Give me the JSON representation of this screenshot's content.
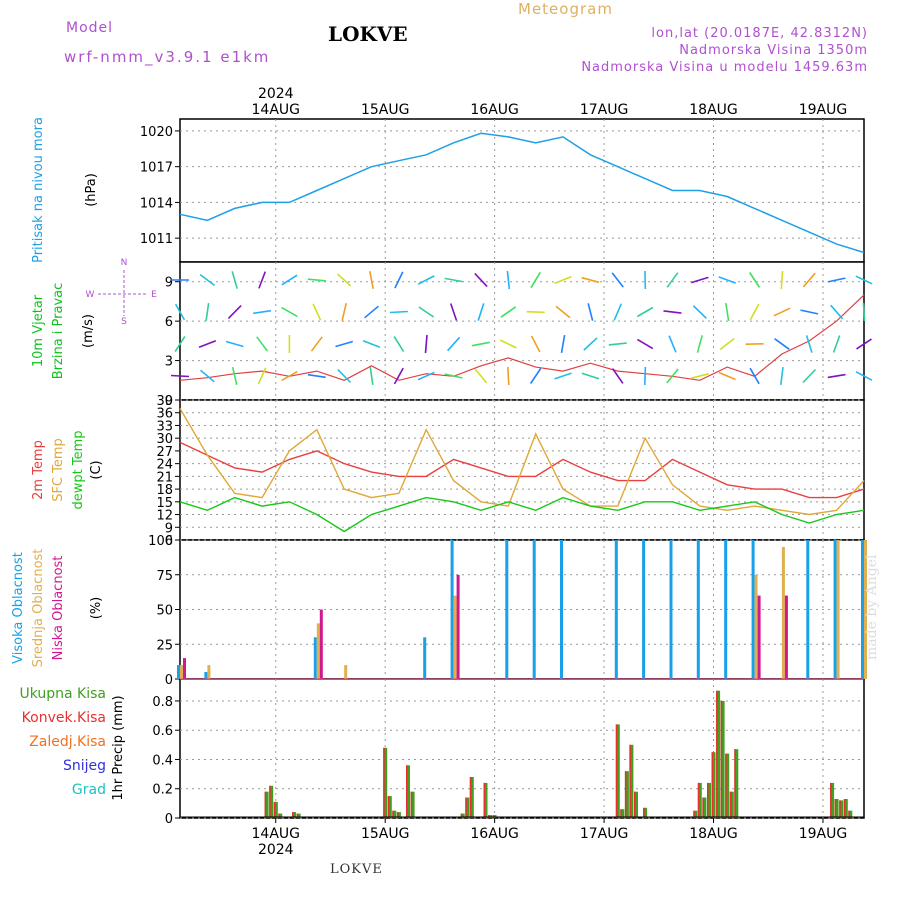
{
  "header": {
    "model_label": "Model",
    "model_name": "wrf-nmm_v3.9.1 e1km",
    "station": "LOKVE",
    "meteogram_label": "Meteogram",
    "lonlat": "lon,lat (20.0187E, 42.8312N)",
    "altitude": "Nadmorska Visina 1350m",
    "model_altitude": "Nadmorska Visina u modelu 1459.63m",
    "footer_station": "LOKVE",
    "watermark": "made by Angel"
  },
  "time_axis": {
    "year": "2024",
    "day_labels": [
      "14AUG",
      "15AUG",
      "16AUG",
      "17AUG",
      "18AUG",
      "19AUG"
    ],
    "start": "2024-08-13T15:00",
    "end": "2024-08-19T21:00",
    "day_ticks": [
      "2024-08-14T12:00",
      "2024-08-15T12:00",
      "2024-08-16T12:00",
      "2024-08-17T12:00",
      "2024-08-18T12:00",
      "2024-08-19T12:00"
    ]
  },
  "colors": {
    "pressure": "#1ea0e6",
    "wind_label": "#10c020",
    "temp2m": "#e84040",
    "sfctemp": "#e0a838",
    "dewpoint": "#18c818",
    "high_cloud": "#18a0e8",
    "mid_cloud": "#e0b050",
    "low_cloud": "#d01890",
    "total_precip": "#40a020",
    "conv_precip": "#e83030",
    "compass": "#b050d0"
  },
  "chart_data": [
    {
      "type": "line",
      "panel": "pressure",
      "ylabel_lines": [
        "Pritisak na nivou mora",
        "(hPa)"
      ],
      "ylim": [
        1009,
        1021
      ],
      "ticks": [
        1011,
        1014,
        1017,
        1020
      ],
      "grid": true,
      "series": [
        {
          "x_hours": [
            0,
            6,
            12,
            18,
            24,
            30,
            36,
            42,
            48,
            54,
            60,
            66,
            72,
            78,
            84,
            90,
            96,
            102,
            108,
            114,
            120,
            126,
            132,
            138,
            144,
            150
          ],
          "values": [
            1013,
            1012.5,
            1013.5,
            1014,
            1014,
            1015,
            1016,
            1017,
            1017.5,
            1018,
            1019,
            1019.8,
            1019.5,
            1019,
            1019.5,
            1018,
            1017,
            1016,
            1015,
            1015,
            1014.5,
            1013.5,
            1012.5,
            1011.5,
            1010.5,
            1009.8
          ]
        }
      ]
    },
    {
      "type": "line",
      "panel": "wind",
      "ylabel_lines": [
        "10m Vjetar",
        "Brzina i Pravac",
        "(m/s)"
      ],
      "compass": {
        "n": "N",
        "s": "S",
        "e": "E",
        "w": "W"
      },
      "ylim": [
        0,
        10.5
      ],
      "ticks": [
        0,
        3,
        6,
        9
      ],
      "grid": true,
      "series": [
        {
          "name": "speed",
          "x_hours": [
            0,
            6,
            12,
            18,
            24,
            30,
            36,
            42,
            48,
            54,
            60,
            66,
            72,
            78,
            84,
            90,
            96,
            102,
            108,
            114,
            120,
            126,
            132,
            138,
            144,
            150
          ],
          "values": [
            1.5,
            1.7,
            2,
            2.2,
            1.8,
            2.2,
            1.5,
            2.6,
            1.5,
            2,
            1.8,
            2.6,
            3.2,
            2.5,
            2.2,
            2.8,
            2.2,
            2,
            1.8,
            1.5,
            2.5,
            1.8,
            3.5,
            4.5,
            6,
            8
          ]
        }
      ]
    },
    {
      "type": "line",
      "panel": "temperature",
      "ylabel_lines": [
        "2m Temp",
        "SFC Temp",
        "dewpt Temp",
        "(C)"
      ],
      "ylim": [
        6,
        39
      ],
      "ticks": [
        6,
        9,
        12,
        15,
        18,
        21,
        24,
        27,
        30,
        33,
        36,
        39
      ],
      "grid": true,
      "series": [
        {
          "name": "2m Temp",
          "x_hours": [
            0,
            6,
            12,
            18,
            24,
            30,
            36,
            42,
            48,
            54,
            60,
            66,
            72,
            78,
            84,
            90,
            96,
            102,
            108,
            114,
            120,
            126,
            132,
            138,
            144,
            150
          ],
          "values": [
            29,
            26,
            23,
            22,
            25,
            27,
            24,
            22,
            21,
            21,
            25,
            23,
            21,
            21,
            25,
            22,
            20,
            20,
            25,
            22,
            19,
            18,
            18,
            16,
            16,
            18
          ]
        },
        {
          "name": "SFC Temp",
          "x_hours": [
            0,
            6,
            12,
            18,
            24,
            30,
            36,
            42,
            48,
            54,
            60,
            66,
            72,
            78,
            84,
            90,
            96,
            102,
            108,
            114,
            120,
            126,
            132,
            138,
            144,
            150
          ],
          "values": [
            37,
            26,
            17,
            16,
            27,
            32,
            18,
            16,
            17,
            32,
            20,
            15,
            14,
            31,
            18,
            14,
            14,
            30,
            19,
            14,
            13,
            14,
            13,
            12,
            13,
            20
          ]
        },
        {
          "name": "dewpt Temp",
          "x_hours": [
            0,
            6,
            12,
            18,
            24,
            30,
            36,
            42,
            48,
            54,
            60,
            66,
            72,
            78,
            84,
            90,
            96,
            102,
            108,
            114,
            120,
            126,
            132,
            138,
            144,
            150
          ],
          "values": [
            15,
            13,
            16,
            14,
            15,
            12,
            8,
            12,
            14,
            16,
            15,
            13,
            15,
            13,
            16,
            14,
            13,
            15,
            15,
            13,
            14,
            15,
            12,
            10,
            12,
            13
          ]
        }
      ]
    },
    {
      "type": "bar",
      "panel": "cloud",
      "ylabel_lines": [
        "Visoka Oblacnost",
        "Srednja Oblacnost",
        "Niska Oblacnost",
        "(%)"
      ],
      "ylim": [
        0,
        100
      ],
      "ticks": [
        0,
        25,
        50,
        75,
        100
      ],
      "grid": true,
      "series": [
        {
          "name": "Visoka Oblacnost",
          "x_hours": [
            0,
            6,
            12,
            18,
            24,
            30,
            36,
            42,
            48,
            54,
            60,
            66,
            72,
            78,
            84,
            90,
            96,
            102,
            108,
            114,
            120,
            126,
            132,
            138,
            144,
            150
          ],
          "values": [
            10,
            5,
            1,
            1,
            1,
            30,
            1,
            1,
            1,
            30,
            100,
            1,
            100,
            100,
            100,
            1,
            100,
            100,
            100,
            100,
            100,
            100,
            1,
            100,
            100,
            100
          ]
        },
        {
          "name": "Srednja Oblacnost",
          "x_hours": [
            0,
            6,
            12,
            18,
            24,
            30,
            36,
            42,
            48,
            54,
            60,
            66,
            72,
            78,
            84,
            90,
            96,
            102,
            108,
            114,
            120,
            126,
            132,
            138,
            144,
            150
          ],
          "values": [
            10,
            10,
            1,
            1,
            1,
            40,
            10,
            1,
            1,
            1,
            60,
            1,
            1,
            1,
            1,
            1,
            1,
            1,
            1,
            1,
            1,
            75,
            95,
            1,
            100,
            100
          ]
        },
        {
          "name": "Niska Oblacnost",
          "x_hours": [
            0,
            6,
            12,
            18,
            24,
            30,
            36,
            42,
            48,
            54,
            60,
            66,
            72,
            78,
            84,
            90,
            96,
            102,
            108,
            114,
            120,
            126,
            132,
            138,
            144,
            150
          ],
          "values": [
            15,
            1,
            1,
            1,
            1,
            50,
            1,
            1,
            1,
            1,
            75,
            1,
            1,
            1,
            1,
            1,
            1,
            1,
            1,
            1,
            1,
            60,
            60,
            1,
            1,
            1
          ]
        }
      ]
    },
    {
      "type": "bar",
      "panel": "precip",
      "ylabel_lines": [
        "1hr Precip (mm)"
      ],
      "legend": [
        "Ukupna Kisa",
        "Konvek.Kisa",
        "Zaledj.Kisa",
        "Snijeg",
        "Grad"
      ],
      "ylim": [
        0,
        0.95
      ],
      "ticks": [
        0,
        0.2,
        0.4,
        0.6,
        0.8
      ],
      "grid": true,
      "series": [
        {
          "name": "Ukupna Kisa",
          "x_hours": [
            19,
            20,
            21,
            22,
            25,
            26,
            45,
            46,
            47,
            48,
            50,
            51,
            62,
            63,
            64,
            67,
            68,
            69,
            96,
            97,
            98,
            99,
            100,
            102,
            113,
            114,
            115,
            116,
            117,
            118,
            119,
            120,
            121,
            122,
            143,
            144,
            145,
            146,
            147
          ],
          "values": [
            0.18,
            0.22,
            0.11,
            0.03,
            0.04,
            0.03,
            0.48,
            0.15,
            0.05,
            0.04,
            0.36,
            0.18,
            0.03,
            0.14,
            0.28,
            0.24,
            0.02,
            0.02,
            0.64,
            0.06,
            0.32,
            0.5,
            0.18,
            0.07,
            0.05,
            0.24,
            0.14,
            0.24,
            0.45,
            0.87,
            0.8,
            0.44,
            0.18,
            0.47,
            0.24,
            0.13,
            0.12,
            0.13,
            0.05
          ]
        }
      ]
    }
  ]
}
